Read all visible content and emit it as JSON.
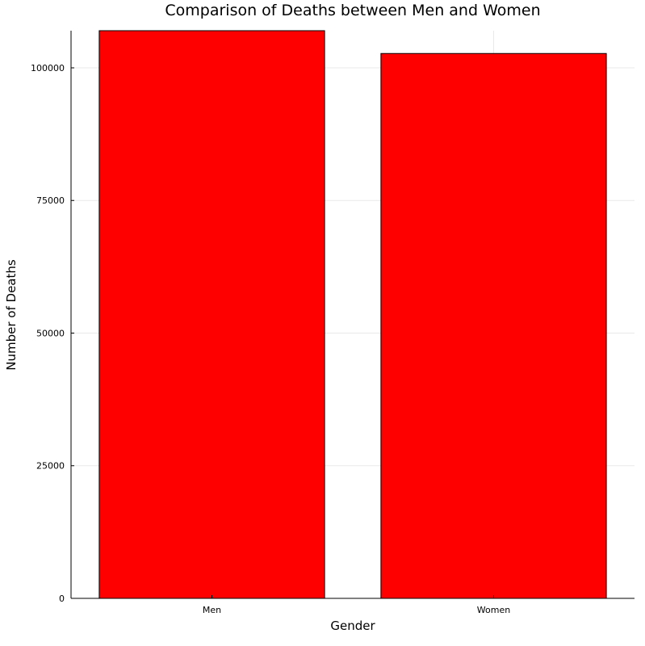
{
  "chart_data": {
    "type": "bar",
    "title": "Comparison of Deaths between Men and Women",
    "xlabel": "Gender",
    "ylabel": "Number of Deaths",
    "categories": [
      "Men",
      "Women"
    ],
    "values": [
      107000,
      102700
    ],
    "ylim": [
      0,
      107000
    ],
    "yticks": [
      0,
      25000,
      50000,
      75000,
      100000
    ],
    "ytick_labels": [
      "0",
      "25000",
      "50000",
      "75000",
      "100000"
    ],
    "bar_color": "#ff0000",
    "bar_edge_color": "#000000",
    "grid": true,
    "legend": "none"
  }
}
